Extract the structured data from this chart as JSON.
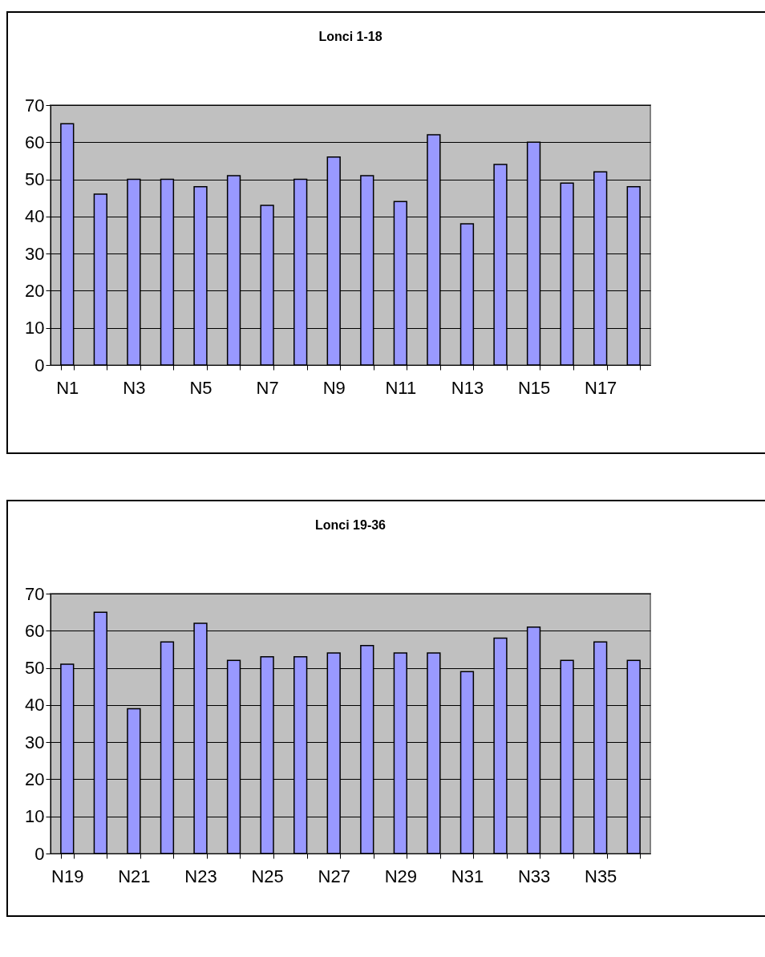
{
  "chart_data": [
    {
      "type": "bar",
      "title": "Lonci 1-18",
      "categories": [
        "N1",
        null,
        "N3",
        null,
        "N5",
        null,
        "N7",
        null,
        "N9",
        null,
        "N11",
        null,
        "N13",
        null,
        "N15",
        null,
        "N17",
        null
      ],
      "values": [
        65,
        46,
        50,
        50,
        48,
        51,
        43,
        50,
        56,
        51,
        44,
        62,
        38,
        54,
        60,
        49,
        52,
        48
      ],
      "color": "#9999ff",
      "ylim": [
        0,
        70
      ],
      "yticks": [
        0,
        10,
        20,
        30,
        40,
        50,
        60,
        70
      ],
      "grid": "y"
    },
    {
      "type": "bar",
      "title": "Lonci 19-36",
      "categories": [
        "N19",
        null,
        "N21",
        null,
        "N23",
        null,
        "N25",
        null,
        "N27",
        null,
        "N29",
        null,
        "N31",
        null,
        "N33",
        null,
        "N35",
        null
      ],
      "values": [
        51,
        65,
        39,
        57,
        62,
        52,
        53,
        53,
        54,
        56,
        54,
        54,
        49,
        58,
        61,
        52,
        57,
        52
      ],
      "color": "#9999ff",
      "ylim": [
        0,
        70
      ],
      "yticks": [
        0,
        10,
        20,
        30,
        40,
        50,
        60,
        70
      ],
      "grid": "y"
    }
  ]
}
